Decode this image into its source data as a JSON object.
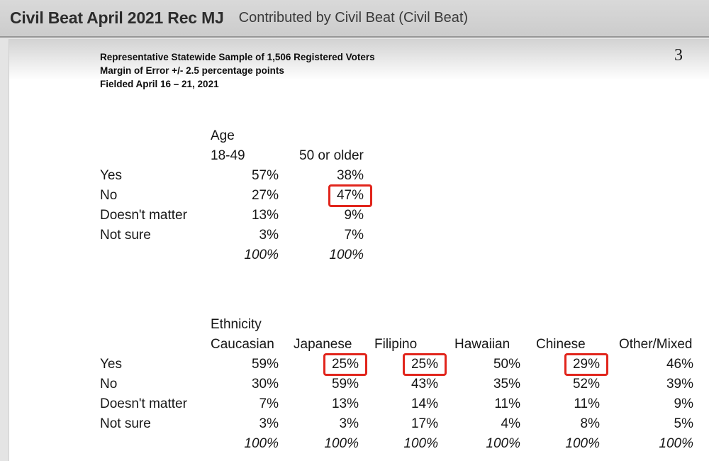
{
  "header": {
    "title": "Civil Beat April 2021 Rec MJ",
    "subtitle": "Contributed by Civil Beat (Civil Beat)"
  },
  "page": {
    "number": "3",
    "meta_lines": [
      "Representative Statewide Sample of 1,506 Registered Voters",
      "Margin of Error +/- 2.5 percentage points",
      "Fielded April 16 – 21, 2021"
    ]
  },
  "colors": {
    "highlight_border": "#e1251c",
    "topbar_bg": "#d2d2d2",
    "page_bg": "#ffffff"
  },
  "tables": [
    {
      "id": "table-age",
      "group_label": "Age",
      "columns": [
        "18-49",
        "50 or older"
      ],
      "rows": [
        {
          "label": "Yes",
          "values": [
            "57%",
            "38%"
          ]
        },
        {
          "label": "No",
          "values": [
            "27%",
            "47%"
          ]
        },
        {
          "label": "Doesn't matter",
          "values": [
            "13%",
            "9%"
          ]
        },
        {
          "label": "Not sure",
          "values": [
            "3%",
            "7%"
          ]
        }
      ],
      "totals": [
        "100%",
        "100%"
      ],
      "highlights": [
        [
          1,
          1
        ]
      ]
    },
    {
      "id": "table-ethnicity",
      "group_label": "Ethnicity",
      "columns": [
        "Caucasian",
        "Japanese",
        "Filipino",
        "Hawaiian",
        "Chinese",
        "Other/Mixed"
      ],
      "rows": [
        {
          "label": "Yes",
          "values": [
            "59%",
            "25%",
            "25%",
            "50%",
            "29%",
            "46%"
          ]
        },
        {
          "label": "No",
          "values": [
            "30%",
            "59%",
            "43%",
            "35%",
            "52%",
            "39%"
          ]
        },
        {
          "label": "Doesn't matter",
          "values": [
            "7%",
            "13%",
            "14%",
            "11%",
            "11%",
            "9%"
          ]
        },
        {
          "label": "Not sure",
          "values": [
            "3%",
            "3%",
            "17%",
            "4%",
            "8%",
            "5%"
          ]
        }
      ],
      "totals": [
        "100%",
        "100%",
        "100%",
        "100%",
        "100%",
        "100%"
      ],
      "highlights": [
        [
          0,
          1
        ],
        [
          0,
          2
        ],
        [
          0,
          4
        ]
      ]
    }
  ]
}
